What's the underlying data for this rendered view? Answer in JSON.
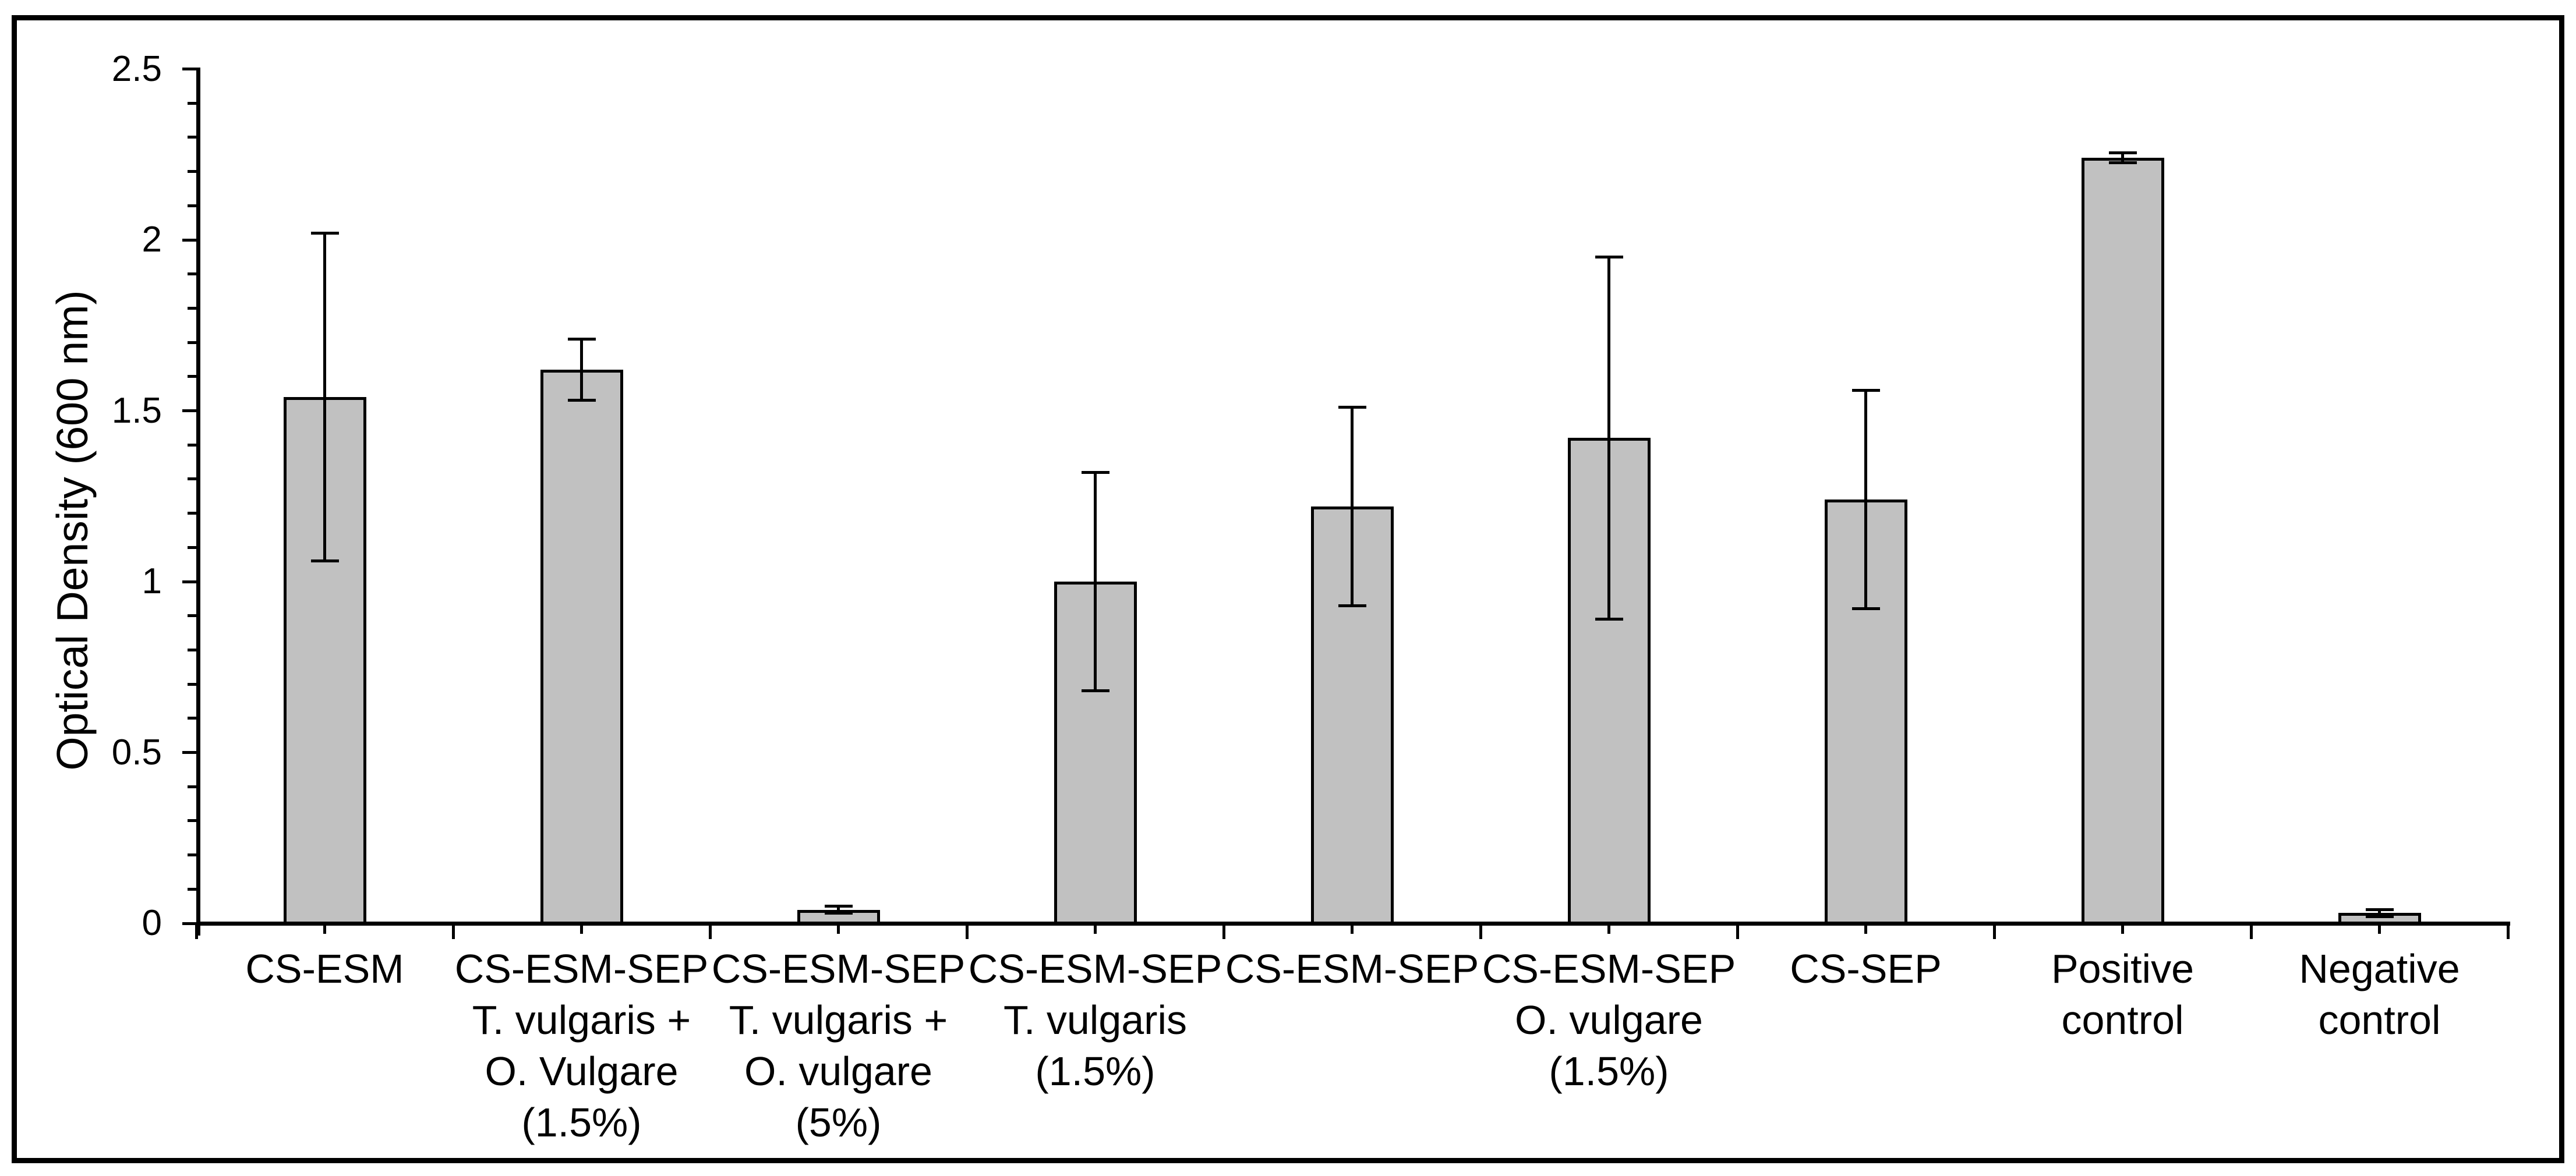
{
  "chart_data": {
    "type": "bar",
    "title": "",
    "xlabel": "",
    "ylabel": "Optical Density (600 nm)",
    "ylim": [
      0,
      2.5
    ],
    "ytick_interval": 0.5,
    "ytick_minor_interval": 0.1,
    "ytick_labels": [
      "0",
      "0.5",
      "1",
      "1.5",
      "2",
      "2.5"
    ],
    "grid": false,
    "legend": false,
    "background_color": "#ffffff",
    "bar_fill_color": "#c1c1c1",
    "bar_edge_color": "#000000",
    "error_bar_color": "#000000",
    "categories": [
      [
        "CS-ESM"
      ],
      [
        "CS-ESM-SEP",
        "T. vulgaris +",
        "O. Vulgare",
        "(1.5%)"
      ],
      [
        "CS-ESM-SEP",
        "T. vulgaris +",
        "O. vulgare",
        "(5%)"
      ],
      [
        "CS-ESM-SEP",
        "T. vulgaris",
        "(1.5%)"
      ],
      [
        "CS-ESM-SEP"
      ],
      [
        "CS-ESM-SEP",
        "O. vulgare",
        "(1.5%)"
      ],
      [
        "CS-SEP"
      ],
      [
        "Positive",
        "control"
      ],
      [
        "Negative",
        "control"
      ]
    ],
    "values": [
      1.54,
      1.62,
      0.04,
      1.0,
      1.22,
      1.42,
      1.24,
      2.24,
      0.03
    ],
    "errors": [
      0.48,
      0.09,
      0.01,
      0.32,
      0.29,
      0.53,
      0.32,
      0.015,
      0.01
    ]
  }
}
